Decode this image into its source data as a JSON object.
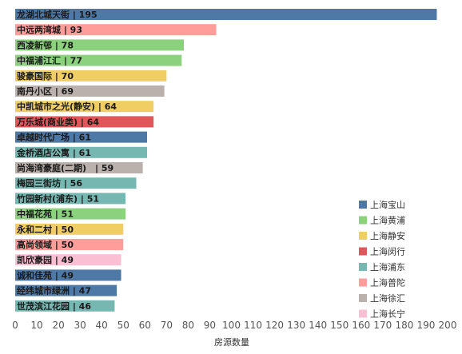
{
  "chart_data": {
    "type": "bar",
    "orientation": "horizontal",
    "xlabel": "房源数量",
    "xlim": [
      0,
      200
    ],
    "xticks": [
      0,
      10,
      20,
      30,
      40,
      50,
      60,
      70,
      80,
      90,
      100,
      110,
      120,
      130,
      140,
      150,
      160,
      170,
      180,
      190,
      200
    ],
    "grid": false,
    "legend_position": "bottom-right",
    "bars": [
      {
        "category": "龙湖北城天街",
        "value": 195,
        "label": "龙湖北城天街 | 195",
        "district": "上海宝山"
      },
      {
        "category": "中远两湾城",
        "value": 93,
        "label": "中远两湾城 | 93",
        "district": "上海普陀"
      },
      {
        "category": "西凌新邨",
        "value": 78,
        "label": "西凌新邨 | 78",
        "district": "上海黄浦"
      },
      {
        "category": "中福浦江汇",
        "value": 77,
        "label": "中福浦江汇 | 77",
        "district": "上海黄浦"
      },
      {
        "category": "骏豪国际",
        "value": 70,
        "label": "骏豪国际 | 70",
        "district": "上海静安"
      },
      {
        "category": "南丹小区",
        "value": 69,
        "label": "南丹小区 | 69",
        "district": "上海徐汇"
      },
      {
        "category": "中凯城市之光(静安)",
        "value": 64,
        "label": "中凯城市之光(静安) | 64",
        "district": "上海静安"
      },
      {
        "category": "万乐城(商业类)",
        "value": 64,
        "label": "万乐城(商业类) | 64",
        "district": "上海闵行"
      },
      {
        "category": "卓越时代广场",
        "value": 61,
        "label": "卓越时代广场 | 61",
        "district": "上海宝山"
      },
      {
        "category": "金桥酒店公寓",
        "value": 61,
        "label": "金桥酒店公寓 | 61",
        "district": "上海浦东"
      },
      {
        "category": "尚海湾豪庭(二期)",
        "value": 59,
        "label": "尚海湾豪庭(二期)　| 59",
        "district": "上海徐汇"
      },
      {
        "category": "梅园三街坊",
        "value": 56,
        "label": "梅园三街坊 | 56",
        "district": "上海浦东"
      },
      {
        "category": "竹园新村(浦东)",
        "value": 51,
        "label": "竹园新村(浦东) | 51",
        "district": "上海浦东"
      },
      {
        "category": "中福花苑",
        "value": 51,
        "label": "中福花苑 | 51",
        "district": "上海黄浦"
      },
      {
        "category": "永和二村",
        "value": 50,
        "label": "永和二村 | 50",
        "district": "上海静安"
      },
      {
        "category": "高尚领域",
        "value": 50,
        "label": "高尚领域 | 50",
        "district": "上海普陀"
      },
      {
        "category": "凯欣豪园",
        "value": 49,
        "label": "凯欣豪园 | 49",
        "district": "上海长宁"
      },
      {
        "category": "诚和佳苑",
        "value": 49,
        "label": "诚和佳苑 | 49",
        "district": "上海宝山"
      },
      {
        "category": "经纬城市绿洲",
        "value": 47,
        "label": "经纬城市绿洲 | 47",
        "district": "上海宝山"
      },
      {
        "category": "世茂滨江花园",
        "value": 46,
        "label": "世茂滨江花园 | 46",
        "district": "上海浦东"
      }
    ],
    "legend": [
      {
        "name": "上海宝山",
        "color": "#4e79a7"
      },
      {
        "name": "上海黄浦",
        "color": "#8cd17d"
      },
      {
        "name": "上海静安",
        "color": "#f1ce63"
      },
      {
        "name": "上海闵行",
        "color": "#e15759"
      },
      {
        "name": "上海浦东",
        "color": "#76b7b2"
      },
      {
        "name": "上海普陀",
        "color": "#ff9d9a"
      },
      {
        "name": "上海徐汇",
        "color": "#bab0ac"
      },
      {
        "name": "上海长宁",
        "color": "#fabfd2"
      }
    ]
  }
}
